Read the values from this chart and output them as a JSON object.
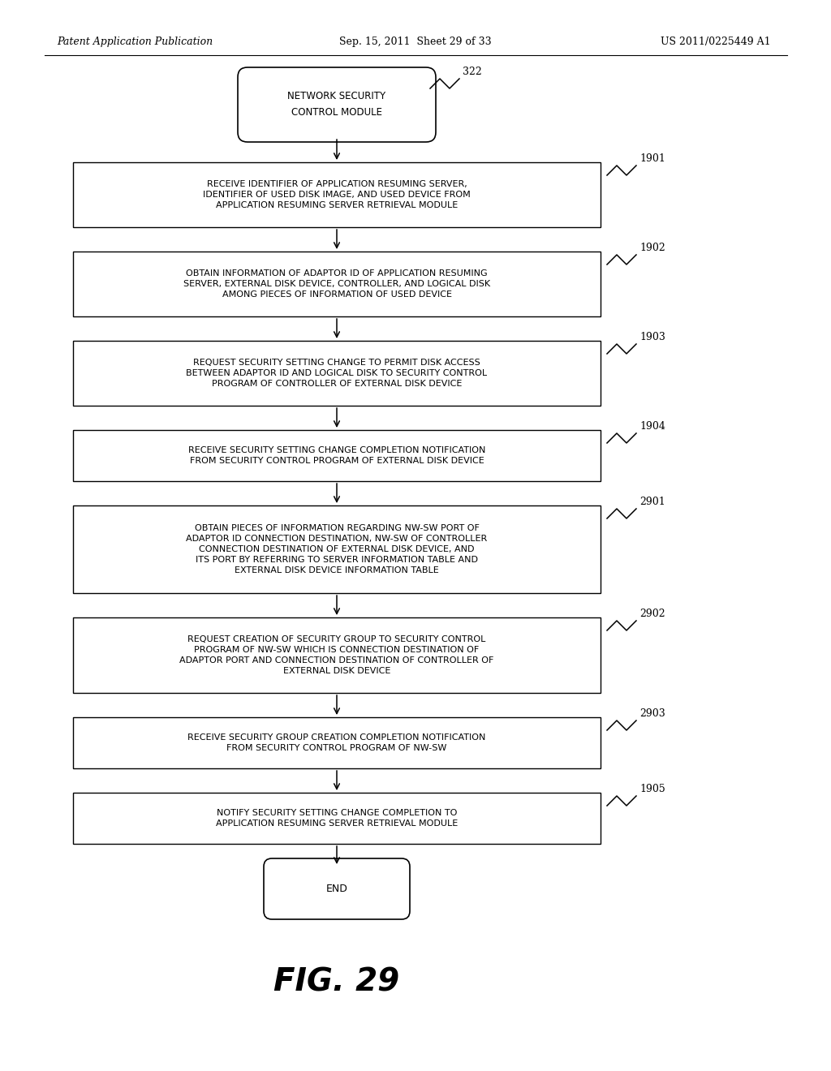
{
  "header_left": "Patent Application Publication",
  "header_mid": "Sep. 15, 2011  Sheet 29 of 33",
  "header_right": "US 2011/0225449 A1",
  "start_label": "322",
  "start_line1": "NETWORK SECURITY",
  "start_line2": "CONTROL MODULE",
  "end_text": "END",
  "fig_label": "FIG. 29",
  "boxes": [
    {
      "id": "1901",
      "lines": [
        "RECEIVE IDENTIFIER OF APPLICATION RESUMING SERVER,",
        "IDENTIFIER OF USED DISK IMAGE, AND USED DEVICE FROM",
        "APPLICATION RESUMING SERVER RETRIEVAL MODULE"
      ]
    },
    {
      "id": "1902",
      "lines": [
        "OBTAIN INFORMATION OF ADAPTOR ID OF APPLICATION RESUMING",
        "SERVER, EXTERNAL DISK DEVICE, CONTROLLER, AND LOGICAL DISK",
        "AMONG PIECES OF INFORMATION OF USED DEVICE"
      ]
    },
    {
      "id": "1903",
      "lines": [
        "REQUEST SECURITY SETTING CHANGE TO PERMIT DISK ACCESS",
        "BETWEEN ADAPTOR ID AND LOGICAL DISK TO SECURITY CONTROL",
        "PROGRAM OF CONTROLLER OF EXTERNAL DISK DEVICE"
      ]
    },
    {
      "id": "1904",
      "lines": [
        "RECEIVE SECURITY SETTING CHANGE COMPLETION NOTIFICATION",
        "FROM SECURITY CONTROL PROGRAM OF EXTERNAL DISK DEVICE"
      ]
    },
    {
      "id": "2901",
      "lines": [
        "OBTAIN PIECES OF INFORMATION REGARDING NW-SW PORT OF",
        "ADAPTOR ID CONNECTION DESTINATION, NW-SW OF CONTROLLER",
        "CONNECTION DESTINATION OF EXTERNAL DISK DEVICE, AND",
        "ITS PORT BY REFERRING TO SERVER INFORMATION TABLE AND",
        "EXTERNAL DISK DEVICE INFORMATION TABLE"
      ]
    },
    {
      "id": "2902",
      "lines": [
        "REQUEST CREATION OF SECURITY GROUP TO SECURITY CONTROL",
        "PROGRAM OF NW-SW WHICH IS CONNECTION DESTINATION OF",
        "ADAPTOR PORT AND CONNECTION DESTINATION OF CONTROLLER OF",
        "EXTERNAL DISK DEVICE"
      ]
    },
    {
      "id": "2903",
      "lines": [
        "RECEIVE SECURITY GROUP CREATION COMPLETION NOTIFICATION",
        "FROM SECURITY CONTROL PROGRAM OF NW-SW"
      ]
    },
    {
      "id": "1905",
      "lines": [
        "NOTIFY SECURITY SETTING CHANGE COMPLETION TO",
        "APPLICATION RESUMING SERVER RETRIEVAL MODULE"
      ]
    }
  ],
  "bg_color": "#ffffff",
  "text_color": "#000000"
}
